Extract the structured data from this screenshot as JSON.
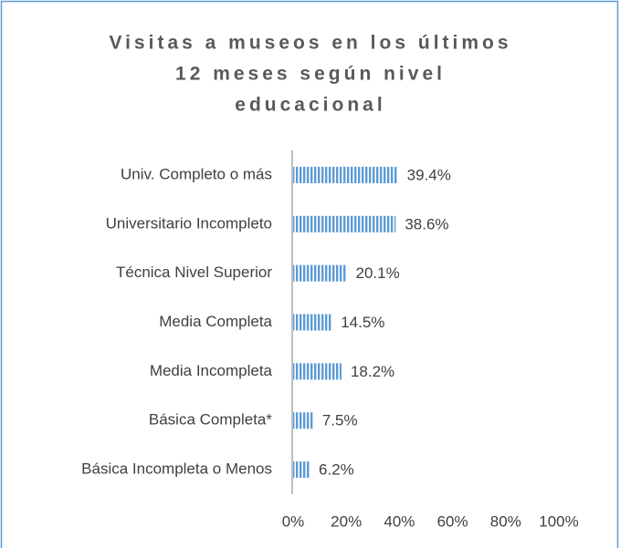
{
  "chart_data": {
    "type": "bar",
    "orientation": "horizontal",
    "title": [
      "Visitas a museos en los últimos",
      "12 meses según nivel",
      "educacional"
    ],
    "categories": [
      "Univ. Completo o más",
      "Universitario Incompleto",
      "Técnica Nivel Superior",
      "Media Completa",
      "Media Incompleta",
      "Básica Completa*",
      "Básica Incompleta o Menos"
    ],
    "values": [
      39.4,
      38.6,
      20.1,
      14.5,
      18.2,
      7.5,
      6.2
    ],
    "value_labels": [
      "39.4%",
      "38.6%",
      "20.1%",
      "14.5%",
      "18.2%",
      "7.5%",
      "6.2%"
    ],
    "color": "#5b9bd5",
    "xlim": [
      0,
      100
    ],
    "xticks": [
      {
        "value": 0,
        "label": "0%"
      },
      {
        "value": 20,
        "label": "20%"
      },
      {
        "value": 40,
        "label": "40%"
      },
      {
        "value": 60,
        "label": "60%"
      },
      {
        "value": 80,
        "label": "80%"
      },
      {
        "value": 100,
        "label": "100%"
      }
    ],
    "grid": false
  }
}
